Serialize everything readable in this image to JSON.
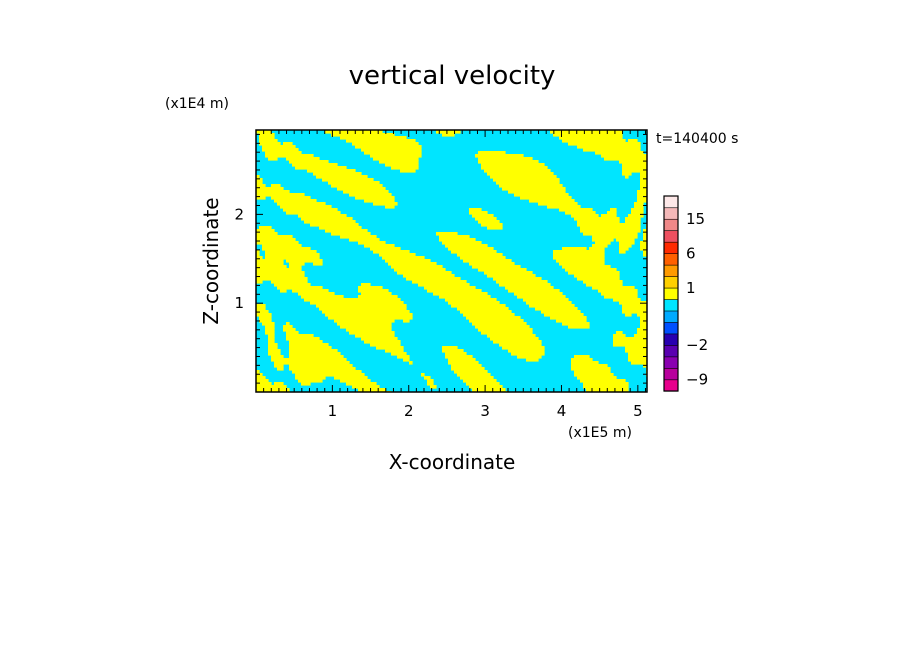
{
  "chart_data": {
    "type": "heatmap",
    "title": "vertical velocity",
    "xlabel": "X-coordinate",
    "ylabel": "Z-coordinate",
    "x_unit": "(x1E5 m)",
    "y_unit": "(x1E4 m)",
    "time_label": "t=140400 s",
    "xlim": [
      0,
      5.12
    ],
    "ylim": [
      0,
      2.95
    ],
    "x_ticks": [
      "1",
      "2",
      "3",
      "4",
      "5"
    ],
    "x_tick_values": [
      1,
      2,
      3,
      4,
      5
    ],
    "y_ticks": [
      "1",
      "2"
    ],
    "y_tick_values": [
      1,
      2
    ],
    "field_colors": {
      "positive": "#ffff00",
      "negative": "#00e5ff"
    },
    "colorbar": {
      "levels": [
        -12,
        -9,
        -6,
        -4,
        -2,
        -1,
        -0.5,
        0,
        0.5,
        1,
        2,
        4,
        6,
        9,
        12,
        15,
        18,
        24
      ],
      "colors": [
        "#e8008c",
        "#b8009c",
        "#8a00b0",
        "#5a00b0",
        "#2800b0",
        "#0050ff",
        "#00aaff",
        "#00e5ff",
        "#ffff00",
        "#ffd000",
        "#ff9a00",
        "#ff6000",
        "#ff2a00",
        "#ee5060",
        "#f08888",
        "#f4b8b8",
        "#fde8e8"
      ],
      "tick_labels": [
        "15",
        "6",
        "1",
        "−2",
        "−9"
      ],
      "tick_values": [
        15,
        6,
        1,
        -2,
        -9
      ]
    }
  }
}
